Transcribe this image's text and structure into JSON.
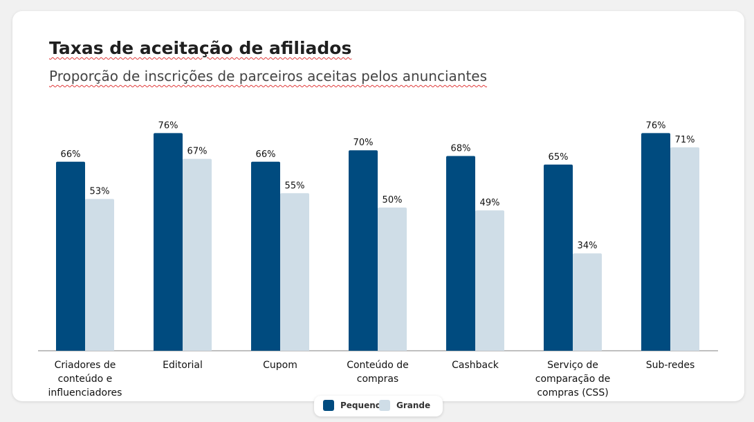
{
  "chart_data": {
    "type": "bar",
    "title": "Taxas de aceitação de afiliados",
    "subtitle": "Proporção de inscrições de parceiros aceitas pelos anunciantes",
    "categories": [
      [
        "Criadores de",
        "conteúdo e",
        "influenciadores"
      ],
      [
        "Editorial"
      ],
      [
        "Cupom"
      ],
      [
        "Conteúdo de",
        "compras"
      ],
      [
        "Cashback"
      ],
      [
        "Serviço de",
        "comparação de",
        "compras (CSS)"
      ],
      [
        "Sub-redes"
      ]
    ],
    "series": [
      {
        "name": "Pequeno",
        "color": "#004b7f",
        "values": [
          66,
          76,
          66,
          70,
          68,
          65,
          76
        ],
        "labels": [
          "66%",
          "76%",
          "66%",
          "70%",
          "68%",
          "65%",
          "76%"
        ]
      },
      {
        "name": "Grande",
        "color": "#cfdde7",
        "values": [
          53,
          67,
          55,
          50,
          49,
          34,
          71
        ],
        "labels": [
          "53%",
          "67%",
          "55%",
          "50%",
          "49%",
          "34%",
          "71%"
        ]
      }
    ],
    "ylim": [
      0,
      100
    ],
    "unit": "%",
    "grid": false,
    "legend_position": "bottom-center"
  }
}
